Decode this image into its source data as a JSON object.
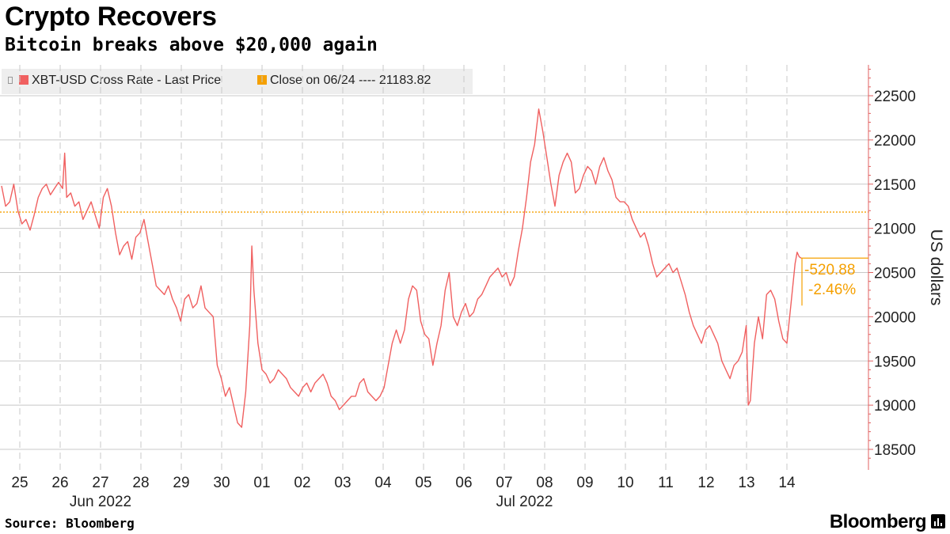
{
  "title": "Crypto Recovers",
  "subtitle": "Bitcoin breaks above $20,000 again",
  "source": "Source: Bloomberg",
  "brand": "Bloomberg",
  "colors": {
    "series": "#f06060",
    "reference": "#f5a000",
    "grid": "#c8c8c8",
    "axis": "#e06060"
  },
  "chart_data": {
    "type": "line",
    "title": "Crypto Recovers",
    "subtitle": "Bitcoin breaks above $20,000 again",
    "ylabel": "US dollars",
    "ylim": [
      18300,
      22900
    ],
    "yticks": [
      18500,
      19000,
      19500,
      20000,
      20500,
      21000,
      21500,
      22000,
      22500
    ],
    "x_tick_labels": [
      "25",
      "26",
      "27",
      "28",
      "29",
      "30",
      "01",
      "02",
      "03",
      "04",
      "05",
      "06",
      "07",
      "08",
      "09",
      "10",
      "11",
      "12",
      "13",
      "14"
    ],
    "month_labels": [
      {
        "label": "Jun 2022",
        "day_index": 2
      },
      {
        "label": "Jul 2022",
        "day_index": 12.5
      }
    ],
    "grid": true,
    "legend_position": "top-left",
    "series": [
      {
        "name": "XBT-USD Cross Rate - Last Price",
        "x_unit": "days from Jun 25 2022 00:00",
        "points": [
          [
            0.0,
            21480
          ],
          [
            0.1,
            21250
          ],
          [
            0.2,
            21300
          ],
          [
            0.3,
            21500
          ],
          [
            0.4,
            21200
          ],
          [
            0.5,
            21050
          ],
          [
            0.6,
            21100
          ],
          [
            0.7,
            20980
          ],
          [
            0.8,
            21150
          ],
          [
            0.9,
            21350
          ],
          [
            1.0,
            21450
          ],
          [
            1.1,
            21500
          ],
          [
            1.2,
            21380
          ],
          [
            1.3,
            21450
          ],
          [
            1.4,
            21520
          ],
          [
            1.5,
            21450
          ],
          [
            1.55,
            21850
          ],
          [
            1.6,
            21350
          ],
          [
            1.7,
            21400
          ],
          [
            1.8,
            21250
          ],
          [
            1.9,
            21300
          ],
          [
            2.0,
            21100
          ],
          [
            2.1,
            21200
          ],
          [
            2.2,
            21300
          ],
          [
            2.3,
            21150
          ],
          [
            2.4,
            21000
          ],
          [
            2.5,
            21350
          ],
          [
            2.6,
            21450
          ],
          [
            2.7,
            21250
          ],
          [
            2.8,
            20950
          ],
          [
            2.9,
            20700
          ],
          [
            3.0,
            20800
          ],
          [
            3.1,
            20850
          ],
          [
            3.2,
            20650
          ],
          [
            3.3,
            20900
          ],
          [
            3.4,
            20950
          ],
          [
            3.5,
            21100
          ],
          [
            3.6,
            20850
          ],
          [
            3.7,
            20600
          ],
          [
            3.8,
            20350
          ],
          [
            3.9,
            20300
          ],
          [
            4.0,
            20250
          ],
          [
            4.1,
            20350
          ],
          [
            4.2,
            20200
          ],
          [
            4.3,
            20100
          ],
          [
            4.4,
            19950
          ],
          [
            4.5,
            20200
          ],
          [
            4.6,
            20250
          ],
          [
            4.7,
            20100
          ],
          [
            4.8,
            20150
          ],
          [
            4.9,
            20350
          ],
          [
            5.0,
            20100
          ],
          [
            5.1,
            20050
          ],
          [
            5.2,
            20000
          ],
          [
            5.3,
            19450
          ],
          [
            5.4,
            19300
          ],
          [
            5.5,
            19100
          ],
          [
            5.6,
            19200
          ],
          [
            5.7,
            19000
          ],
          [
            5.8,
            18800
          ],
          [
            5.9,
            18750
          ],
          [
            6.0,
            19150
          ],
          [
            6.1,
            19900
          ],
          [
            6.15,
            20800
          ],
          [
            6.2,
            20300
          ],
          [
            6.3,
            19700
          ],
          [
            6.4,
            19400
          ],
          [
            6.5,
            19350
          ],
          [
            6.6,
            19250
          ],
          [
            6.7,
            19300
          ],
          [
            6.8,
            19400
          ],
          [
            6.9,
            19350
          ],
          [
            7.0,
            19300
          ],
          [
            7.1,
            19200
          ],
          [
            7.2,
            19150
          ],
          [
            7.3,
            19100
          ],
          [
            7.4,
            19200
          ],
          [
            7.5,
            19250
          ],
          [
            7.6,
            19150
          ],
          [
            7.7,
            19250
          ],
          [
            7.8,
            19300
          ],
          [
            7.9,
            19350
          ],
          [
            8.0,
            19250
          ],
          [
            8.1,
            19100
          ],
          [
            8.2,
            19050
          ],
          [
            8.3,
            18950
          ],
          [
            8.4,
            19000
          ],
          [
            8.5,
            19050
          ],
          [
            8.6,
            19100
          ],
          [
            8.7,
            19100
          ],
          [
            8.8,
            19250
          ],
          [
            8.9,
            19300
          ],
          [
            9.0,
            19150
          ],
          [
            9.1,
            19100
          ],
          [
            9.2,
            19050
          ],
          [
            9.3,
            19100
          ],
          [
            9.4,
            19200
          ],
          [
            9.5,
            19450
          ],
          [
            9.6,
            19700
          ],
          [
            9.7,
            19850
          ],
          [
            9.8,
            19700
          ],
          [
            9.9,
            19850
          ],
          [
            10.0,
            20200
          ],
          [
            10.1,
            20350
          ],
          [
            10.2,
            20300
          ],
          [
            10.3,
            19950
          ],
          [
            10.4,
            19800
          ],
          [
            10.5,
            19750
          ],
          [
            10.6,
            19450
          ],
          [
            10.7,
            19700
          ],
          [
            10.8,
            19900
          ],
          [
            10.9,
            20300
          ],
          [
            11.0,
            20500
          ],
          [
            11.1,
            20000
          ],
          [
            11.2,
            19900
          ],
          [
            11.3,
            20050
          ],
          [
            11.4,
            20150
          ],
          [
            11.5,
            20000
          ],
          [
            11.6,
            20050
          ],
          [
            11.7,
            20200
          ],
          [
            11.8,
            20250
          ],
          [
            11.9,
            20350
          ],
          [
            12.0,
            20450
          ],
          [
            12.1,
            20500
          ],
          [
            12.2,
            20550
          ],
          [
            12.3,
            20450
          ],
          [
            12.4,
            20500
          ],
          [
            12.5,
            20350
          ],
          [
            12.6,
            20450
          ],
          [
            12.7,
            20750
          ],
          [
            12.8,
            21000
          ],
          [
            12.9,
            21350
          ],
          [
            13.0,
            21750
          ],
          [
            13.1,
            21950
          ],
          [
            13.2,
            22350
          ],
          [
            13.3,
            22100
          ],
          [
            13.4,
            21800
          ],
          [
            13.5,
            21500
          ],
          [
            13.6,
            21250
          ],
          [
            13.7,
            21600
          ],
          [
            13.8,
            21750
          ],
          [
            13.9,
            21850
          ],
          [
            14.0,
            21750
          ],
          [
            14.1,
            21400
          ],
          [
            14.2,
            21450
          ],
          [
            14.3,
            21600
          ],
          [
            14.4,
            21700
          ],
          [
            14.5,
            21650
          ],
          [
            14.6,
            21500
          ],
          [
            14.7,
            21700
          ],
          [
            14.8,
            21800
          ],
          [
            14.9,
            21650
          ],
          [
            15.0,
            21550
          ],
          [
            15.1,
            21350
          ],
          [
            15.2,
            21300
          ],
          [
            15.3,
            21300
          ],
          [
            15.4,
            21250
          ],
          [
            15.5,
            21100
          ],
          [
            15.6,
            21000
          ],
          [
            15.7,
            20900
          ],
          [
            15.8,
            20950
          ],
          [
            15.9,
            20800
          ],
          [
            16.0,
            20600
          ],
          [
            16.1,
            20450
          ],
          [
            16.2,
            20500
          ],
          [
            16.3,
            20550
          ],
          [
            16.4,
            20600
          ],
          [
            16.5,
            20500
          ],
          [
            16.6,
            20550
          ],
          [
            16.7,
            20400
          ],
          [
            16.8,
            20250
          ],
          [
            16.9,
            20050
          ],
          [
            17.0,
            19900
          ],
          [
            17.1,
            19800
          ],
          [
            17.2,
            19700
          ],
          [
            17.3,
            19850
          ],
          [
            17.4,
            19900
          ],
          [
            17.5,
            19800
          ],
          [
            17.6,
            19700
          ],
          [
            17.7,
            19500
          ],
          [
            17.8,
            19400
          ],
          [
            17.9,
            19300
          ],
          [
            18.0,
            19450
          ],
          [
            18.1,
            19500
          ],
          [
            18.2,
            19600
          ],
          [
            18.3,
            19900
          ],
          [
            18.35,
            19000
          ],
          [
            18.4,
            19050
          ],
          [
            18.5,
            19700
          ],
          [
            18.6,
            20000
          ],
          [
            18.7,
            19750
          ],
          [
            18.8,
            20250
          ],
          [
            18.9,
            20300
          ],
          [
            19.0,
            20200
          ],
          [
            19.1,
            19950
          ],
          [
            19.2,
            19750
          ],
          [
            19.3,
            19700
          ],
          [
            19.4,
            20150
          ],
          [
            19.5,
            20600
          ],
          [
            19.55,
            20730
          ],
          [
            19.6,
            20680
          ],
          [
            19.65,
            20663
          ]
        ]
      }
    ],
    "reference_line": {
      "name": "Close on 06/24",
      "label": "Close on 06/24 ---- 21183.82",
      "value": 21183.82
    },
    "annotations": [
      {
        "text": "-520.88",
        "kind": "change"
      },
      {
        "text": "-2.46%",
        "kind": "percent"
      }
    ]
  }
}
